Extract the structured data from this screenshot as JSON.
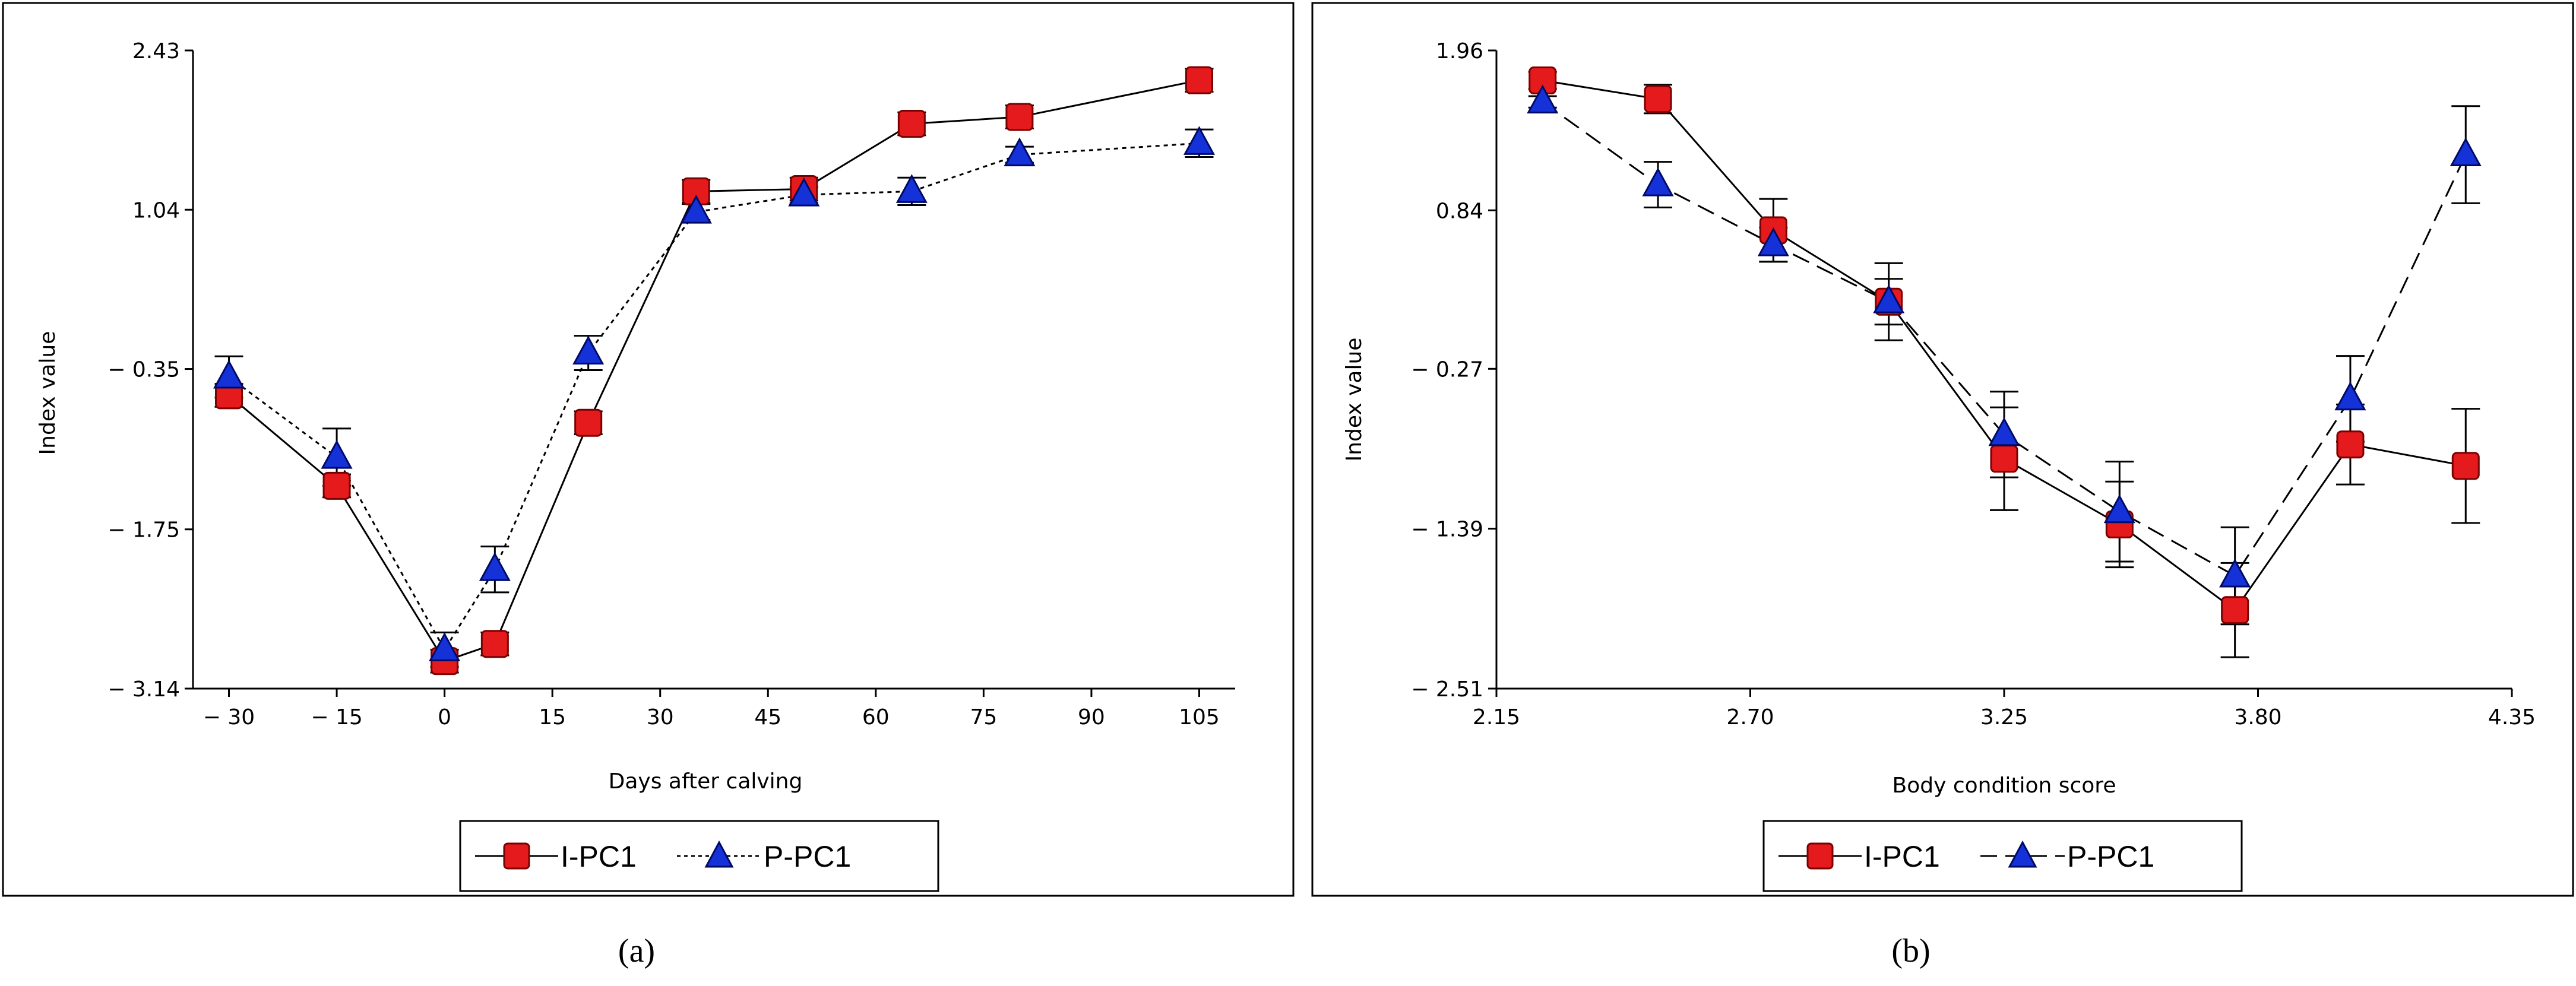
{
  "chart_data": [
    {
      "id": "a",
      "type": "line",
      "caption": "(a)",
      "xlabel": "Days after calving",
      "ylabel": "Index value",
      "xlim": [
        -35,
        110
      ],
      "ylim": [
        -3.14,
        2.43
      ],
      "x_ticks": [
        -30,
        -15,
        0,
        15,
        30,
        45,
        60,
        75,
        90,
        105
      ],
      "x_tick_labels": [
        "− 30",
        "− 15",
        "0",
        "15",
        "30",
        "45",
        "60",
        "75",
        "90",
        "105"
      ],
      "y_ticks": [
        -3.14,
        -1.75,
        -0.35,
        1.04,
        2.43
      ],
      "y_tick_labels": [
        "− 3.14",
        "− 1.75",
        "− 0.35",
        "1.04",
        "2.43"
      ],
      "legend": [
        "I-PC1",
        "P-PC1"
      ],
      "series": [
        {
          "name": "I-PC1",
          "marker": "square",
          "line": "solid",
          "color": "#e41a1c",
          "x": [
            -30,
            -15,
            0,
            7,
            20,
            35,
            50,
            65,
            80,
            105
          ],
          "y": [
            -0.58,
            -1.37,
            -2.9,
            -2.75,
            -0.82,
            1.2,
            1.22,
            1.79,
            1.85,
            2.17
          ],
          "err": [
            0.1,
            0.1,
            0.1,
            0.1,
            0.1,
            0.1,
            0.1,
            0.1,
            0.1,
            0.1
          ]
        },
        {
          "name": "P-PC1",
          "marker": "triangle",
          "line": "dotted",
          "color": "#1432d8",
          "x": [
            -30,
            -15,
            0,
            7,
            20,
            35,
            50,
            65,
            80,
            105
          ],
          "y": [
            -0.42,
            -1.12,
            -2.8,
            -2.1,
            -0.21,
            1.02,
            1.17,
            1.2,
            1.52,
            1.62
          ],
          "err": [
            0.18,
            0.25,
            0.15,
            0.2,
            0.15,
            0.07,
            0.07,
            0.12,
            0.07,
            0.12
          ]
        }
      ]
    },
    {
      "id": "b",
      "type": "line",
      "caption": "(b)",
      "xlabel": "Body condition score",
      "ylabel": "Index value",
      "xlim": [
        2.15,
        4.35
      ],
      "ylim": [
        -2.51,
        1.96
      ],
      "x_ticks": [
        2.15,
        2.7,
        3.25,
        3.8,
        4.35
      ],
      "x_tick_labels": [
        "2.15",
        "2.70",
        "3.25",
        "3.80",
        "4.35"
      ],
      "y_ticks": [
        -2.51,
        -1.39,
        -0.27,
        0.84,
        1.96
      ],
      "y_tick_labels": [
        "− 2.51",
        "− 1.39",
        "− 0.27",
        "0.84",
        "1.96"
      ],
      "legend": [
        "I-PC1",
        "P-PC1"
      ],
      "series": [
        {
          "name": "I-PC1",
          "marker": "square",
          "line": "solid",
          "color": "#e41a1c",
          "x": [
            2.25,
            2.5,
            2.75,
            3.0,
            3.25,
            3.5,
            3.75,
            4.0,
            4.25
          ],
          "y": [
            1.75,
            1.62,
            0.7,
            0.2,
            -0.9,
            -1.36,
            -1.96,
            -0.8,
            -0.95
          ],
          "err": [
            0.06,
            0.1,
            0.22,
            0.27,
            0.36,
            0.3,
            0.33,
            0.28,
            0.4
          ]
        },
        {
          "name": "P-PC1",
          "marker": "triangle",
          "line": "dashed",
          "color": "#1432d8",
          "x": [
            2.25,
            2.5,
            2.75,
            3.0,
            3.25,
            3.5,
            3.75,
            4.0,
            4.25
          ],
          "y": [
            1.6,
            1.02,
            0.6,
            0.2,
            -0.73,
            -1.27,
            -1.72,
            -0.48,
            1.23
          ],
          "err": [
            0.04,
            0.16,
            0.12,
            0.16,
            0.3,
            0.35,
            0.34,
            0.3,
            0.34
          ]
        }
      ]
    }
  ]
}
